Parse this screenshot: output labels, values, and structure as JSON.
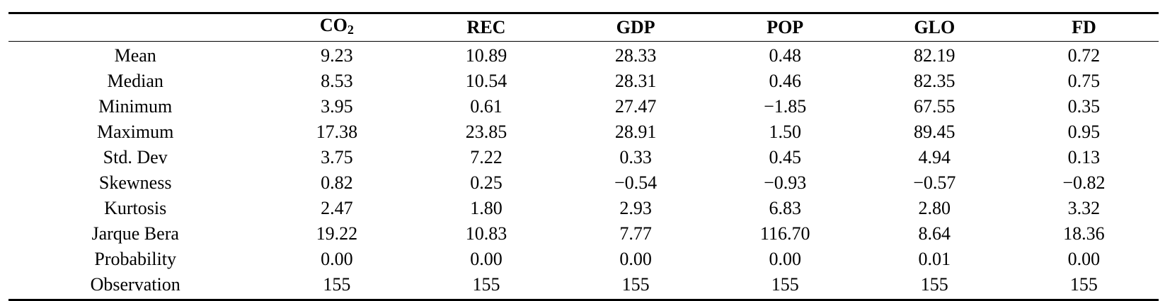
{
  "table": {
    "corner": "",
    "columns": [
      {
        "main": "CO",
        "sub": "2"
      },
      {
        "main": "REC",
        "sub": ""
      },
      {
        "main": "GDP",
        "sub": ""
      },
      {
        "main": "POP",
        "sub": ""
      },
      {
        "main": "GLO",
        "sub": ""
      },
      {
        "main": "FD",
        "sub": ""
      }
    ],
    "rows": [
      {
        "label": "Mean",
        "values": [
          "9.23",
          "10.89",
          "28.33",
          "0.48",
          "82.19",
          "0.72"
        ]
      },
      {
        "label": "Median",
        "values": [
          "8.53",
          "10.54",
          "28.31",
          "0.46",
          "82.35",
          "0.75"
        ]
      },
      {
        "label": "Minimum",
        "values": [
          "3.95",
          "0.61",
          "27.47",
          "−1.85",
          "67.55",
          "0.35"
        ]
      },
      {
        "label": "Maximum",
        "values": [
          "17.38",
          "23.85",
          "28.91",
          "1.50",
          "89.45",
          "0.95"
        ]
      },
      {
        "label": "Std. Dev",
        "values": [
          "3.75",
          "7.22",
          "0.33",
          "0.45",
          "4.94",
          "0.13"
        ]
      },
      {
        "label": "Skewness",
        "values": [
          "0.82",
          "0.25",
          "−0.54",
          "−0.93",
          "−0.57",
          "−0.82"
        ]
      },
      {
        "label": "Kurtosis",
        "values": [
          "2.47",
          "1.80",
          "2.93",
          "6.83",
          "2.80",
          "3.32"
        ]
      },
      {
        "label": "Jarque Bera",
        "values": [
          "19.22",
          "10.83",
          "7.77",
          "116.70",
          "8.64",
          "18.36"
        ]
      },
      {
        "label": "Probability",
        "values": [
          "0.00",
          "0.00",
          "0.00",
          "0.00",
          "0.01",
          "0.00"
        ]
      },
      {
        "label": "Observation",
        "values": [
          "155",
          "155",
          "155",
          "155",
          "155",
          "155"
        ]
      }
    ]
  }
}
